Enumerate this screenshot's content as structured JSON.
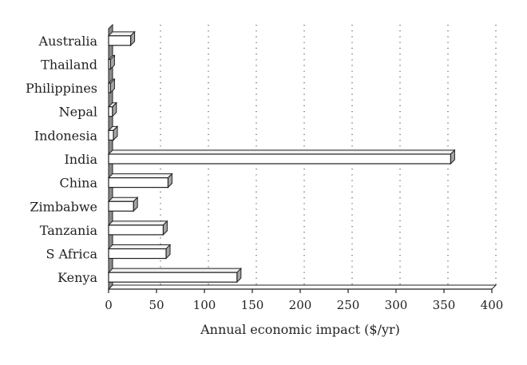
{
  "chart_data": {
    "type": "bar",
    "orientation": "horizontal",
    "style": "3d",
    "categories": [
      "Kenya",
      "S Africa",
      "Tanzania",
      "Zimbabwe",
      "China",
      "India",
      "Indonesia",
      "Nepal",
      "Philippines",
      "Thailand",
      "Australia"
    ],
    "series": [
      {
        "values": [
          134,
          60,
          57,
          26,
          62,
          357,
          5,
          4,
          2,
          2,
          23
        ]
      }
    ],
    "xlabel": "Annual economic impact ($/yr)",
    "ylabel": "",
    "xlim": [
      0,
      400
    ],
    "xticks": [
      0,
      50,
      100,
      150,
      200,
      250,
      300,
      350,
      400
    ],
    "grid": "vertical-dotted",
    "colors": {
      "bar_face": "#ffffff",
      "bar_side": "#a6a6a6",
      "bar_stroke": "#231f20",
      "wall": "#8c8c8c",
      "text": "#231f20"
    }
  }
}
